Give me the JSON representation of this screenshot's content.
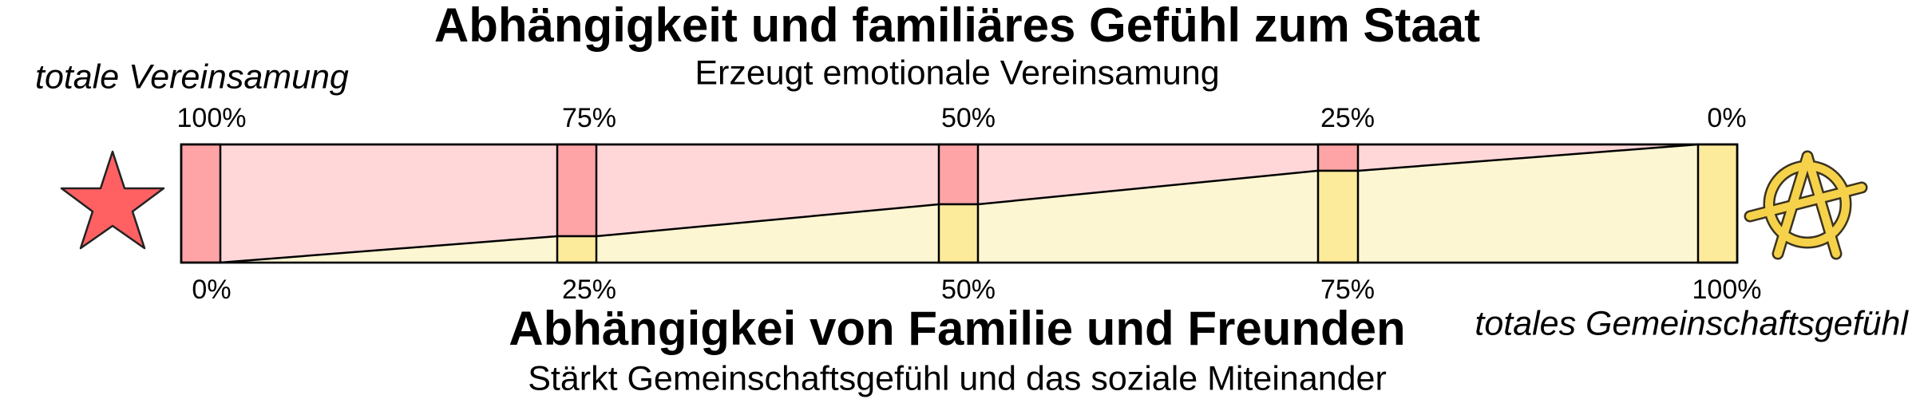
{
  "top": {
    "title": "Abhängigkeit und familiäres Gefühl zum Staat",
    "subtitle": "Erzeugt emotionale Vereinsamung",
    "pole_label": "totale Vereinsamung",
    "scale": [
      "100%",
      "75%",
      "50%",
      "25%",
      "0%"
    ]
  },
  "bottom": {
    "title": "Abhängigkei von Familie und Freunden",
    "subtitle": "Stärkt Gemeinschaftsgefühl und das soziale Miteinander",
    "pole_label": "totales Gemeinschaftsgefühl",
    "scale": [
      "0%",
      "25%",
      "50%",
      "75%",
      "100%"
    ]
  }
}
